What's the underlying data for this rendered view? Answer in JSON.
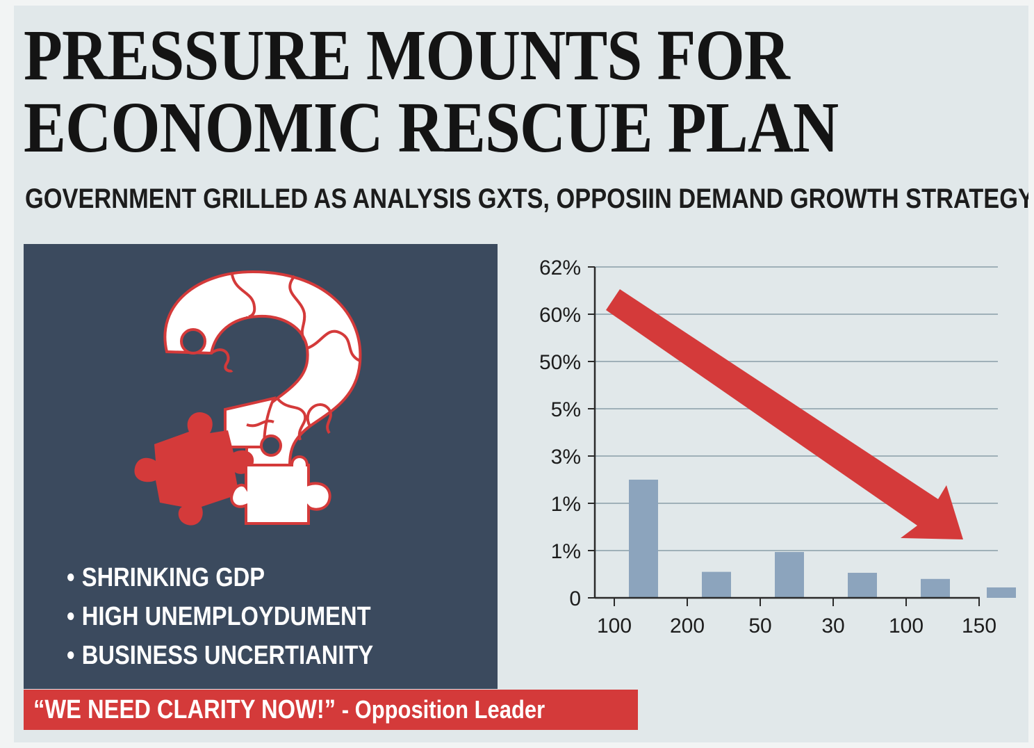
{
  "headline": {
    "line1": "PRESSURE MOUNTS FOR",
    "line2": "ECONOMIC RESCUE PLAN"
  },
  "subheadline": "GOVERNMENT GRILLED AS ANALYSIS GXTS, OPPOSIIN DEMAND GROWTH STRATEGY",
  "illustration": {
    "icon": "puzzle-question-mark-icon",
    "panel_color": "#3b4a5e",
    "accent_color": "#d43a3a"
  },
  "bullets": [
    "SHRINKING GDP",
    "HIGH UNEMPLOYDUMENT",
    "BUSINESS UNCERTIANITY"
  ],
  "quote": {
    "text": "“WE NEED CLARITY NOW!”",
    "source": " - Opposition Leader"
  },
  "chart_data": {
    "type": "bar",
    "title": "",
    "xlabel": "",
    "ylabel": "",
    "y_tick_labels": [
      "0",
      "1%",
      "1%",
      "3%",
      "5%",
      "50%",
      "60%",
      "62%"
    ],
    "x_tick_labels": [
      "100",
      "200",
      "50",
      "30",
      "100",
      "150"
    ],
    "bars": [
      {
        "label_position": 1,
        "value_ticks": 2.5
      },
      {
        "label_position": 2,
        "value_ticks": 0.55
      },
      {
        "label_position": 3,
        "value_ticks": 0.97
      },
      {
        "label_position": 4,
        "value_ticks": 0.53
      },
      {
        "label_position": 5,
        "value_ticks": 0.4
      },
      {
        "label_position": 6,
        "value_ticks": 0.22
      }
    ],
    "value_unit_note": "bar values expressed in y-tick steps (axis is non-linear)",
    "grid": true,
    "trend_arrow": {
      "direction": "down",
      "color": "#d43a3a"
    },
    "bar_color": "#8ca4bd"
  }
}
